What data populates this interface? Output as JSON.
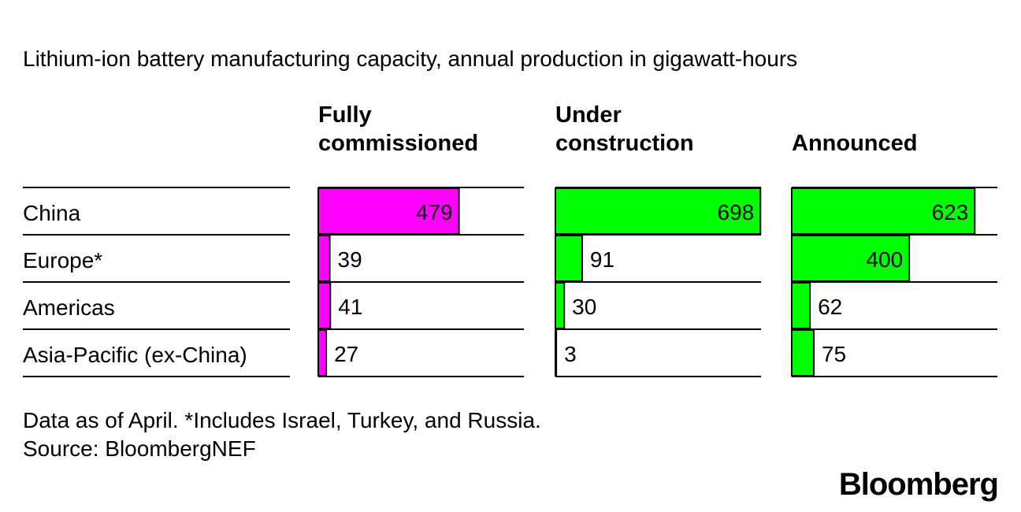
{
  "chart_data": {
    "type": "bar",
    "orientation": "horizontal",
    "title": "Lithium-ion battery manufacturing capacity, annual production in gigawatt-hours",
    "categories": [
      "China",
      "Europe*",
      "Americas",
      "Asia-Pacific (ex-China)"
    ],
    "series": [
      {
        "name_lines": [
          "Fully",
          "commissioned"
        ],
        "color": "#ff00ff",
        "values": [
          479,
          39,
          41,
          27
        ]
      },
      {
        "name_lines": [
          "Under",
          "construction"
        ],
        "color": "#00ff00",
        "values": [
          698,
          91,
          30,
          3
        ]
      },
      {
        "name_lines": [
          "Announced"
        ],
        "color": "#00ff00",
        "values": [
          623,
          400,
          62,
          75
        ]
      }
    ],
    "xlim": [
      0,
      700
    ],
    "units": "gigawatt-hours",
    "notes": [
      "Data as of April. *Includes Israel, Turkey, and Russia.",
      "Source: BloombergNEF"
    ],
    "logo": "Bloomberg"
  }
}
